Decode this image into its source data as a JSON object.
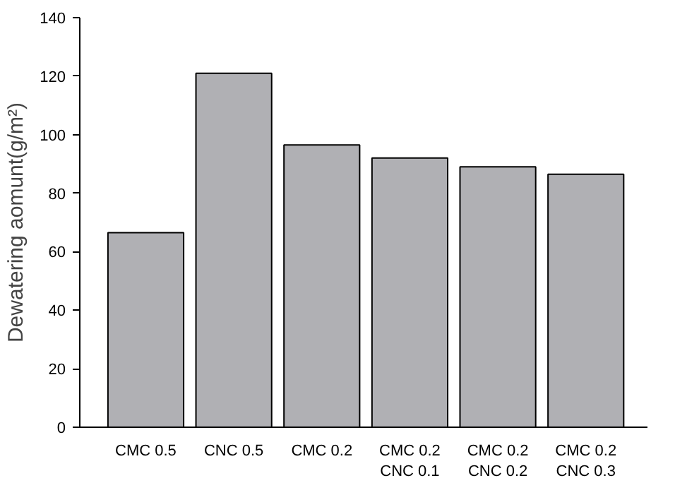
{
  "chart_data": {
    "type": "bar",
    "ylabel": "Dewatering aomunt(g/m²)",
    "categories": [
      "CMC 0.5",
      "CNC 0.5",
      "CMC 0.2",
      "CMC 0.2\nCNC 0.1",
      "CMC 0.2\nCNC 0.2",
      "CMC 0.2\nCNC 0.3"
    ],
    "values": [
      66.5,
      121,
      96.5,
      92,
      89,
      86.5
    ],
    "color": "#b0b0b4",
    "ylim": [
      0,
      140
    ],
    "yticks": [
      0,
      20,
      40,
      60,
      80,
      100,
      120,
      140
    ],
    "grid": false
  }
}
